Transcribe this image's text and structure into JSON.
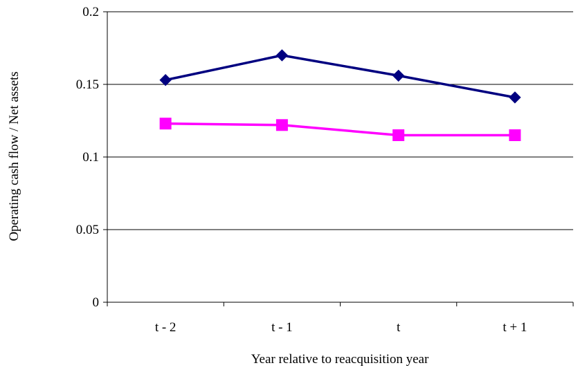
{
  "chart_data": {
    "type": "line",
    "title": "",
    "xlabel": "Year relative to reacquisition year",
    "ylabel": "Operating cash flow / Net assets",
    "categories": [
      "t - 2",
      "t - 1",
      "t",
      "t + 1"
    ],
    "ylim": [
      0,
      0.2
    ],
    "yticks": [
      0,
      0.05,
      0.1,
      0.15,
      0.2
    ],
    "ytick_labels": [
      "0",
      "0.05",
      "0.1",
      "0.15",
      "0.2"
    ],
    "grid": "horizontal",
    "series": [
      {
        "color": "#000080",
        "marker": "diamond",
        "values": [
          0.153,
          0.17,
          0.156,
          0.141
        ]
      },
      {
        "color": "#ff00ff",
        "marker": "square",
        "values": [
          0.123,
          0.122,
          0.115,
          0.115
        ]
      }
    ]
  }
}
